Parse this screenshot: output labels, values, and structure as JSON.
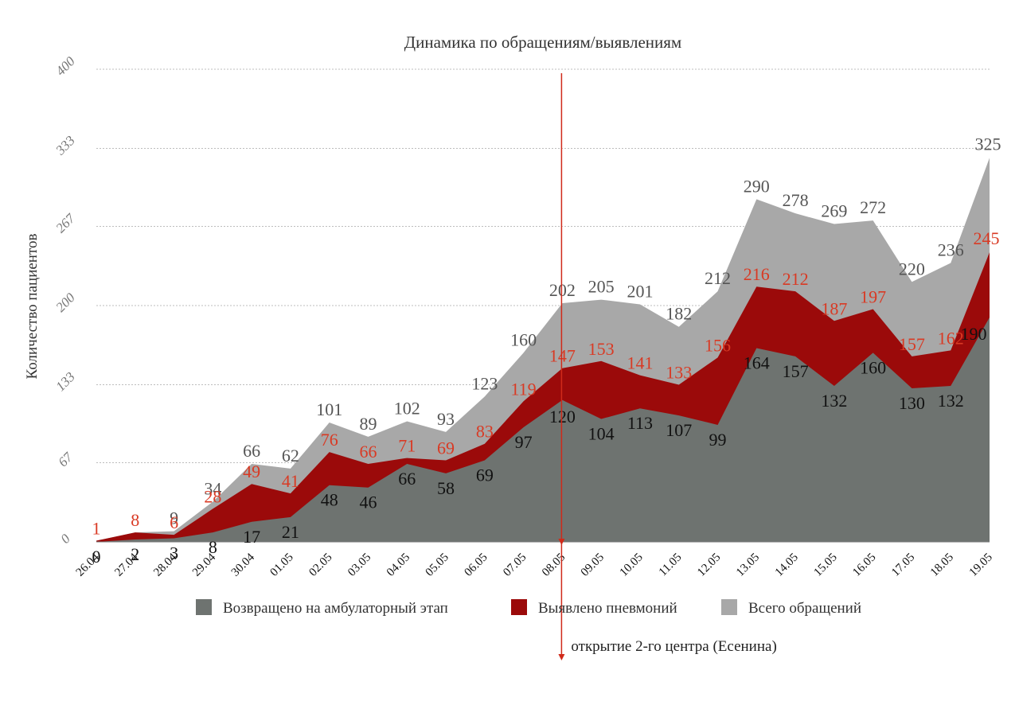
{
  "chart_data": {
    "type": "area",
    "title": "Динамика по обращениям/выявлениям",
    "ylabel": "Количество пациентов",
    "xlabel": "",
    "ylim": [
      0,
      400
    ],
    "yticks": [
      "0",
      "67",
      "133",
      "200",
      "267",
      "333",
      "400"
    ],
    "grid": true,
    "legend_position": "bottom",
    "categories": [
      "26.04",
      "27.04",
      "28.04",
      "29.04",
      "30.04",
      "01.05",
      "02.05",
      "03.05",
      "04.05",
      "05.05",
      "06.05",
      "07.05",
      "08.05",
      "09.05",
      "10.05",
      "11.05",
      "12.05",
      "13.05",
      "14.05",
      "15.05",
      "16.05",
      "17.05",
      "18.05",
      "19.05"
    ],
    "series": [
      {
        "name": "Всего обращений",
        "color": "#a8a8a8",
        "label_color": "#555555",
        "values": [
          null,
          null,
          9,
          34,
          66,
          62,
          101,
          89,
          102,
          93,
          123,
          160,
          202,
          205,
          201,
          182,
          212,
          290,
          278,
          269,
          272,
          220,
          236,
          325
        ],
        "plot_values": [
          1,
          8,
          9,
          34,
          66,
          62,
          101,
          89,
          102,
          93,
          123,
          160,
          202,
          205,
          201,
          182,
          212,
          290,
          278,
          269,
          272,
          220,
          236,
          325
        ]
      },
      {
        "name": "Выявлено пневмоний",
        "color": "#9b0a0a",
        "label_color": "#d93a24",
        "values": [
          1,
          8,
          6,
          28,
          49,
          41,
          76,
          66,
          71,
          69,
          83,
          119,
          147,
          153,
          141,
          133,
          156,
          216,
          212,
          187,
          197,
          157,
          162,
          245
        ]
      },
      {
        "name": "Возвращено на амбулаторный этап",
        "color": "#6e7370",
        "label_color": "#111111",
        "values": [
          0,
          2,
          3,
          8,
          17,
          21,
          48,
          46,
          66,
          58,
          69,
          97,
          120,
          104,
          113,
          107,
          99,
          164,
          157,
          132,
          160,
          130,
          132,
          190
        ]
      }
    ],
    "annotation": {
      "text": "открытие 2-го центра (Есенина)",
      "category": "08.05",
      "color": "#d02a1a"
    }
  }
}
